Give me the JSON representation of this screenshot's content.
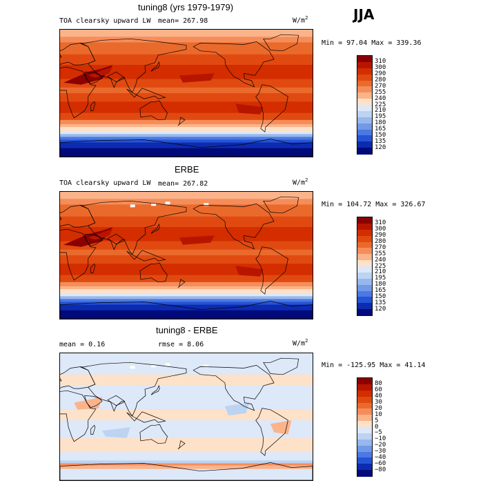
{
  "season": "JJA",
  "panels": [
    {
      "title": "tuning8 (yrs 1979-1979)",
      "variable": "TOA clearsky upward LW",
      "mean_text": "mean= 267.98",
      "rmse_text": "",
      "units": "W/m",
      "units_sup": "2",
      "minmax": "Min =  97.04 Max = 339.36",
      "levels": [
        "310",
        "300",
        "290",
        "280",
        "270",
        "255",
        "240",
        "225",
        "210",
        "195",
        "180",
        "165",
        "150",
        "135",
        "120"
      ],
      "colors": [
        "#8b0000",
        "#b81500",
        "#d32d00",
        "#e04a10",
        "#ea6a2c",
        "#f58d5a",
        "#fbb38a",
        "#fde1c8",
        "#dde8f8",
        "#bcd3f2",
        "#97b8ec",
        "#7199e6",
        "#4b78e2",
        "#2553d6",
        "#0c2bb0",
        "#000a7a"
      ]
    },
    {
      "title": "ERBE",
      "variable": "TOA clearsky upward LW",
      "mean_text": "mean= 267.82",
      "rmse_text": "",
      "units": "W/m",
      "units_sup": "2",
      "minmax": "Min = 104.72 Max = 326.67",
      "levels": [
        "310",
        "300",
        "290",
        "280",
        "270",
        "255",
        "240",
        "225",
        "210",
        "195",
        "180",
        "165",
        "150",
        "135",
        "120"
      ],
      "colors": [
        "#8b0000",
        "#b81500",
        "#d32d00",
        "#e04a10",
        "#ea6a2c",
        "#f58d5a",
        "#fbb38a",
        "#fde1c8",
        "#dde8f8",
        "#bcd3f2",
        "#97b8ec",
        "#7199e6",
        "#4b78e2",
        "#2553d6",
        "#0c2bb0",
        "#000a7a"
      ]
    },
    {
      "title": "tuning8 - ERBE",
      "variable": "",
      "mean_text": "mean =    0.16",
      "rmse_text": "rmse =    8.06",
      "units": "W/m",
      "units_sup": "2",
      "minmax": "Min = -125.95 Max =  41.14",
      "levels": [
        "80",
        "60",
        "40",
        "30",
        "20",
        "10",
        "5",
        "0",
        "−5",
        "−10",
        "−20",
        "−30",
        "−40",
        "−60",
        "−80"
      ],
      "colors": [
        "#8b0000",
        "#b81500",
        "#d32d00",
        "#e04a10",
        "#ea6a2c",
        "#f58d5a",
        "#fbb38a",
        "#fde1c8",
        "#dde8f8",
        "#bcd3f2",
        "#97b8ec",
        "#7199e6",
        "#4b78e2",
        "#2553d6",
        "#0c2bb0",
        "#000a7a"
      ]
    }
  ]
}
